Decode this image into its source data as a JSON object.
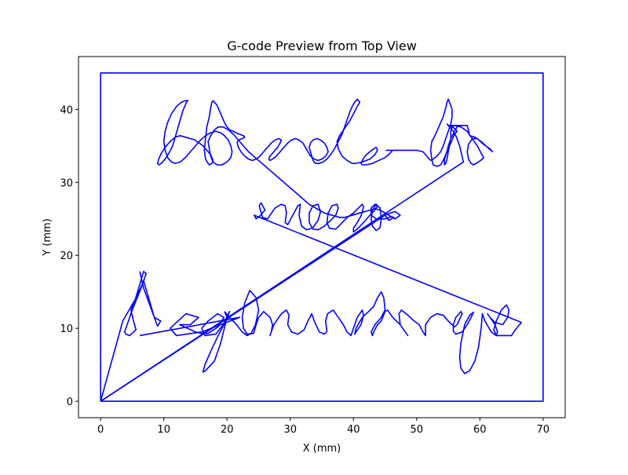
{
  "chart_data": {
    "type": "line",
    "title": "G-code Preview from Top View",
    "xlabel": "X (mm)",
    "ylabel": "Y (mm)",
    "xlim": [
      -3.5,
      73.5
    ],
    "ylim": [
      -2.25,
      47.25
    ],
    "xticks": [
      0,
      10,
      20,
      30,
      40,
      50,
      60,
      70
    ],
    "yticks": [
      0,
      10,
      20,
      30,
      40
    ],
    "grid": false,
    "line_color": "#0000ff",
    "series": [
      {
        "x": [
          0,
          0,
          70,
          70,
          0,
          0
        ],
        "y": [
          0,
          45,
          45,
          0,
          0,
          0
        ]
      },
      {
        "x": [
          0,
          3.5,
          5.5,
          6.8,
          7.2,
          6.4,
          5.0,
          4.2,
          3.8,
          4.0,
          4.6,
          5.6,
          5.2,
          4.8,
          5.8,
          6.8,
          8.5,
          9.5,
          9.0,
          6.8,
          6.2
        ],
        "y": [
          0,
          11,
          14,
          17.8,
          17.5,
          15.5,
          12.5,
          10.5,
          9.5,
          9.2,
          9.0,
          9.8,
          11,
          12.5,
          14.5,
          16.5,
          11.5,
          11.0,
          10.3,
          15.5,
          17.8
        ]
      },
      {
        "x": [
          6.2,
          22.0,
          19.0,
          16.0,
          12.0,
          11.0,
          13.5,
          15.5,
          14.2,
          12.5,
          15.0,
          16.0,
          17.0,
          18.6,
          19.5,
          18.5,
          17.0,
          16.0,
          16.5,
          18.2,
          19.4,
          20.4,
          19.8,
          18.6,
          17.5,
          16.5,
          16.2,
          16.6,
          18.0,
          19.0,
          20.0,
          19.6
        ],
        "y": [
          9.0,
          11.5,
          10.5,
          9.5,
          9.0,
          10.0,
          12.0,
          11.5,
          10.5,
          10.5,
          9.5,
          9.3,
          9.3,
          10.2,
          11.5,
          12.0,
          11.0,
          10.0,
          9.0,
          9.2,
          10.5,
          12.3,
          11.0,
          9.0,
          7.0,
          5.0,
          4.0,
          4.2,
          5.5,
          8.0,
          11.5,
          12.3
        ]
      },
      {
        "x": [
          19.6,
          20.4,
          21.5,
          22.4,
          23.2,
          23.8,
          24.5,
          25.0,
          24.6,
          23.6,
          22.8,
          22.4,
          22.6,
          23.2,
          24.2,
          24.6,
          25.0,
          25.8,
          26.8,
          27.2,
          27.0,
          26.8,
          27.4,
          28.6,
          29.4,
          29.8,
          29.6,
          30.2,
          31.2,
          32.2,
          32.8,
          33.4,
          33.8,
          34.6,
          35.4,
          35.8,
          35.6,
          35.9,
          36.8,
          37.6,
          38.4,
          39.0,
          39.6,
          40.0,
          40.6,
          41.4,
          41.6,
          41.2,
          40.4,
          40.2,
          40.4,
          41.4,
          42.4,
          43.2,
          43.8,
          44.4,
          44.8,
          45.0,
          44.4,
          43.4,
          42.8,
          43.0,
          43.2,
          43.8,
          44.4,
          45.0,
          45.4,
          46.2,
          47.4,
          48.2,
          48.6,
          48.2,
          47.4,
          47.2,
          47.6,
          48.6,
          49.6,
          50.4,
          51.0,
          51.4,
          51.4,
          51.4,
          52.2,
          53.2,
          54.2,
          55.0,
          55.6,
          56.0,
          56.4
        ],
        "y": [
          12.3,
          11.5,
          10.5,
          9.5,
          9.0,
          9.3,
          10.5,
          12.5,
          14.2,
          15.2,
          13.5,
          11.5,
          10.0,
          9.2,
          9.3,
          10.5,
          11.5,
          12.3,
          11.5,
          10.5,
          9.5,
          9.0,
          10.5,
          12.0,
          12.5,
          11.8,
          10.5,
          9.5,
          9.2,
          9.8,
          11.0,
          12.0,
          11.0,
          9.5,
          9.2,
          9.6,
          11.0,
          12.0,
          12.5,
          11.5,
          10.5,
          9.5,
          9.0,
          10.0,
          11.5,
          12.5,
          11.8,
          10.5,
          9.5,
          9.2,
          10.0,
          11.5,
          12.3,
          13.0,
          14.2,
          15.0,
          14.2,
          12.5,
          11.5,
          10.5,
          9.5,
          9.0,
          9.5,
          10.5,
          11.0,
          12.3,
          12.5,
          11.5,
          10.5,
          9.5,
          9.0,
          9.5,
          10.5,
          12.0,
          12.5,
          11.8,
          11.0,
          10.5,
          9.5,
          9.0,
          9.3,
          10.5,
          11.5,
          12.0,
          11.8,
          11.0,
          10.5,
          10.2,
          10.5
        ]
      },
      {
        "x": [
          56.4,
          57.2,
          57.0,
          56.2,
          55.8,
          55.8,
          56.2,
          57.2,
          58.0,
          58.6,
          59.0,
          58.4,
          57.6,
          57.0,
          56.8,
          57.0,
          57.6,
          58.4,
          59.2,
          59.8,
          60.2,
          60.4,
          60.8,
          61.8,
          62.6,
          62.8,
          62.4,
          61.6,
          61.2,
          61.6,
          62.4,
          63.6,
          64.4,
          64.6,
          64.2,
          63.4,
          62.6,
          62.2,
          62.6,
          63.0,
          64.0,
          65.0,
          65.6,
          66.6
        ],
        "y": [
          10.5,
          12.0,
          12.3,
          11.5,
          10.5,
          9.6,
          9.2,
          9.5,
          10.5,
          11.5,
          12.2,
          11.8,
          10.5,
          8.0,
          6.0,
          4.5,
          3.8,
          4.2,
          5.5,
          7.5,
          10.0,
          12.0,
          11.0,
          9.5,
          9.0,
          9.5,
          10.5,
          11.5,
          12.0,
          11.5,
          10.8,
          10.5,
          11.5,
          12.5,
          13.2,
          12.5,
          11.0,
          9.8,
          9.0,
          9.0,
          9.0,
          9.0,
          9.8,
          10.8
        ]
      },
      {
        "x": [
          66.6,
          24.3,
          24.6,
          25.2,
          26.0,
          25.4,
          25.1,
          25.6,
          26.4,
          27.6,
          28.6,
          29.2,
          29.4,
          29.2,
          29.6,
          30.4,
          31.2,
          31.6,
          31.4,
          31.8,
          32.6,
          33.6,
          34.4,
          34.8,
          34.4,
          33.6,
          33.0,
          33.0,
          33.6,
          34.4,
          35.4,
          36.4,
          37.2,
          37.6,
          37.4,
          36.6,
          36.0,
          35.8,
          36.2,
          37.2,
          38.0,
          39.0,
          40.0,
          40.8,
          41.4,
          41.6,
          41.2,
          40.4,
          40.0,
          40.0,
          40.6,
          41.6,
          42.6,
          43.4,
          43.8,
          43.6,
          43.0,
          42.8,
          43.0,
          43.6,
          44.2,
          44.4,
          44.2,
          43.4,
          42.8,
          42.8,
          43.6,
          45.0,
          46.0,
          46.4,
          45.6,
          45.0
        ],
        "y": [
          10.8,
          25.5,
          25.0,
          25.4,
          26.2,
          27.2,
          26.8,
          25.2,
          25.0,
          26.5,
          27.0,
          26.8,
          25.8,
          24.5,
          24.2,
          25.5,
          26.8,
          27.0,
          25.5,
          24.0,
          23.5,
          23.8,
          24.8,
          26.0,
          27.0,
          26.8,
          25.8,
          24.5,
          23.6,
          23.5,
          24.0,
          24.8,
          25.5,
          26.5,
          27.0,
          26.8,
          25.8,
          24.5,
          23.7,
          23.6,
          24.3,
          25.2,
          25.8,
          26.5,
          27.0,
          26.6,
          25.4,
          24.2,
          23.7,
          23.2,
          23.6,
          24.5,
          25.5,
          26.2,
          26.8,
          27.0,
          26.2,
          25.0,
          24.0,
          23.4,
          23.8,
          25.0,
          26.5,
          27.0,
          26.5,
          25.5,
          25.0,
          25.0,
          25.3,
          25.2,
          24.8,
          25.5
        ]
      },
      {
        "x": [
          45.0,
          0.0
        ],
        "y": [
          25.5,
          0.0
        ]
      },
      {
        "x": [
          0.0,
          57.4,
          56.8,
          56.2,
          55.8,
          55.4,
          55.0,
          54.8,
          55.0,
          55.6,
          56.0,
          56.2,
          56.4,
          56.0,
          55.6,
          55.2,
          55.0,
          54.8,
          54.6,
          54.4,
          54.4,
          54.8,
          55.0,
          55.4,
          55.4,
          55.6,
          56.0,
          57.0,
          58.0,
          58.8,
          59.6,
          60.2,
          60.6,
          60.4,
          59.8,
          59.0,
          58.6,
          58.2,
          58.0,
          58.2,
          58.8,
          59.6,
          60.6,
          61.6,
          62.0,
          61.2,
          60.2,
          59.2,
          58.4,
          58.0,
          57.0,
          56.4,
          56.0,
          55.8,
          55.6,
          55.4,
          55.2,
          55.0,
          55.0,
          55.6,
          56.2,
          56.6,
          56.4,
          56.0,
          55.4,
          55.0,
          54.6,
          54.2,
          53.8,
          53.2,
          52.6,
          52.4,
          52.2,
          52.4,
          53.0,
          53.6,
          54.2,
          54.6,
          54.8,
          55.0,
          55.2,
          55.6,
          55.6,
          55.4,
          55.0,
          54.6,
          54.2,
          53.8,
          53.2,
          52.6,
          52.2
        ],
        "y": [
          0.0,
          32.8,
          35.0,
          36.4,
          37.0,
          37.4,
          37.8,
          38.0,
          37.8,
          37.6,
          37.4,
          37.2,
          37.0,
          36.6,
          35.8,
          35.0,
          34.2,
          33.2,
          32.6,
          32.4,
          33.2,
          34.2,
          35.0,
          36.0,
          37.0,
          37.6,
          37.8,
          37.6,
          37.0,
          36.0,
          35.0,
          34.0,
          33.4,
          33.2,
          32.8,
          32.4,
          32.6,
          33.2,
          34.2,
          35.2,
          36.0,
          36.0,
          35.2,
          34.6,
          34.2,
          34.8,
          35.6,
          36.2,
          36.4,
          37.8,
          37.8,
          37.8,
          37.8,
          37.8,
          37.8,
          37.8,
          37.8,
          37.8,
          37.8,
          37.8,
          37.8,
          37.8,
          37.6,
          37.0,
          36.0,
          34.8,
          33.8,
          33.0,
          32.4,
          32.2,
          32.4,
          33.2,
          34.4,
          35.6,
          36.6,
          37.8,
          39.0,
          40.2,
          41.0,
          41.4,
          41.0,
          40.0,
          39.0,
          38.0,
          37.0,
          36.0,
          35.0,
          34.2,
          33.6,
          33.2,
          33.0
        ]
      },
      {
        "x": [
          52.2,
          51.6,
          51.0,
          50.0,
          49.0,
          48.0,
          47.0,
          46.2,
          45.6,
          45.2,
          45.2,
          45.6,
          46.0,
          46.2,
          45.8,
          45.0,
          44.0,
          43.0,
          42.0,
          41.4,
          41.2,
          41.4,
          41.8,
          42.6,
          43.2,
          43.6,
          43.8,
          43.4,
          42.6,
          41.4,
          40.4,
          39.8,
          39.0,
          38.2,
          37.6,
          37.4,
          37.8,
          38.6,
          39.4,
          40.0,
          40.6,
          41.0,
          40.6,
          40.2,
          39.8,
          39.4,
          39.0,
          38.6,
          38.2,
          37.6,
          37.0,
          36.4,
          35.8,
          35.2,
          34.6,
          34.0,
          33.6,
          33.4,
          33.2,
          33.0,
          33.2,
          33.6,
          34.2,
          34.8,
          35.4,
          35.8,
          36.0,
          35.6,
          35.0,
          34.4,
          33.8,
          33.2,
          32.8,
          32.4,
          32.0,
          31.4,
          30.8,
          30.2,
          29.6,
          29.0,
          28.4,
          27.8,
          27.2,
          26.8,
          26.6,
          26.8,
          27.4,
          28.0,
          28.4,
          28.6,
          28.2,
          27.6,
          27.0,
          26.4,
          25.8,
          25.2,
          24.6,
          24.0,
          23.4,
          22.8,
          22.2,
          21.8,
          21.6,
          21.8,
          22.4,
          22.8,
          22.6,
          22.0,
          21.4,
          21.0,
          20.4,
          20.0,
          19.6,
          19.2,
          18.8,
          18.4,
          18.0,
          17.8,
          17.6,
          17.4,
          17.2,
          16.8,
          16.6,
          16.4,
          16.6,
          17.0,
          17.2,
          17.6,
          17.8,
          17.6,
          17.4,
          17.0,
          16.6,
          16.2,
          15.6,
          15.2,
          15.0
        ],
        "y": [
          33.0,
          33.6,
          34.2,
          34.4,
          34.4,
          34.4,
          34.4,
          34.4,
          34.4,
          34.4,
          34.4,
          34.4,
          34.4,
          34.4,
          34.0,
          33.4,
          33.0,
          32.6,
          32.4,
          32.4,
          32.6,
          33.0,
          33.6,
          34.2,
          34.6,
          34.8,
          34.4,
          33.8,
          33.2,
          32.8,
          32.6,
          32.6,
          33.0,
          33.6,
          34.6,
          35.6,
          36.4,
          37.4,
          38.4,
          39.4,
          40.4,
          41.0,
          41.4,
          41.0,
          40.4,
          39.6,
          38.6,
          37.6,
          36.6,
          35.6,
          34.6,
          33.8,
          33.2,
          32.8,
          32.6,
          32.6,
          33.0,
          33.6,
          34.2,
          34.8,
          35.4,
          35.8,
          36.0,
          35.8,
          35.4,
          34.8,
          34.2,
          33.6,
          33.2,
          33.0,
          33.2,
          33.6,
          34.2,
          34.8,
          35.4,
          35.8,
          36.0,
          35.8,
          35.4,
          34.8,
          34.2,
          33.6,
          33.2,
          33.0,
          33.2,
          33.6,
          34.2,
          34.8,
          35.4,
          35.8,
          36.0,
          35.8,
          35.4,
          34.8,
          34.2,
          33.6,
          33.2,
          33.0,
          33.2,
          33.6,
          34.2,
          34.8,
          35.4,
          35.8,
          36.0,
          36.2,
          36.4,
          36.6,
          36.8,
          37.0,
          37.2,
          37.6,
          38.2,
          39.0,
          39.8,
          40.6,
          41.0,
          41.2,
          41.0,
          40.2,
          39.0,
          37.6,
          36.0,
          34.4,
          33.2,
          32.6,
          32.4,
          32.6,
          33.0,
          33.4,
          33.8,
          34.2,
          34.6,
          35.0,
          35.4,
          35.6,
          35.8
        ]
      },
      {
        "x": [
          15.0,
          13.4,
          12.6,
          11.8,
          11.0,
          10.2,
          9.6,
          9.2,
          9.0,
          9.2,
          9.6,
          10.2,
          10.8,
          11.4,
          11.8,
          12.2,
          12.6,
          13.0,
          13.4,
          13.6,
          13.8,
          13.4,
          12.8,
          12.0,
          11.2,
          10.6,
          10.2,
          10.0,
          10.2,
          10.6,
          11.2,
          11.8,
          12.6,
          13.4,
          14.2,
          15.0,
          15.8,
          16.6,
          17.4,
          18.2,
          19.0,
          19.6,
          20.2,
          20.6,
          20.8,
          20.6,
          20.0,
          19.2,
          18.4,
          17.8,
          17.4,
          17.2,
          17.0,
          17.4,
          18.0,
          18.6,
          19.4,
          20.2,
          21.0,
          21.8,
          22.6,
          23.4,
          24.2,
          25.0,
          25.8,
          26.6,
          27.4,
          28.2,
          29.0,
          29.8,
          30.6,
          31.4,
          32.2,
          33.0,
          33.8,
          34.6,
          35.4,
          36.2,
          37.0,
          37.8,
          38.6,
          39.4,
          40.2,
          41.0,
          41.8,
          42.6,
          43.4,
          44.2,
          45.0,
          45.8,
          46.6,
          47.4,
          46.6,
          45.8,
          45.0
        ],
        "y": [
          35.8,
          36.2,
          36.4,
          36.2,
          35.6,
          34.8,
          34.0,
          33.2,
          32.6,
          32.4,
          32.6,
          33.2,
          34.0,
          35.0,
          36.2,
          37.4,
          38.6,
          39.8,
          40.6,
          41.0,
          41.2,
          41.2,
          41.0,
          40.4,
          39.4,
          38.2,
          37.0,
          35.6,
          34.4,
          33.4,
          32.8,
          32.6,
          32.8,
          33.4,
          34.2,
          35.0,
          35.8,
          36.4,
          36.8,
          37.0,
          36.8,
          36.4,
          35.8,
          35.0,
          34.2,
          33.4,
          32.8,
          32.4,
          32.4,
          32.8,
          33.6,
          34.6,
          35.6,
          36.4,
          37.2,
          37.6,
          37.6,
          37.2,
          36.6,
          35.8,
          35.0,
          34.2,
          33.6,
          33.0,
          32.4,
          31.8,
          31.2,
          30.6,
          30.0,
          29.4,
          28.8,
          28.2,
          27.6,
          27.0,
          26.6,
          26.2,
          25.8,
          25.6,
          25.4,
          25.2,
          25.2,
          25.4,
          25.6,
          25.8,
          26.0,
          26.2,
          26.4,
          26.2,
          25.8,
          25.4,
          25.0,
          25.5,
          26.0,
          25.8,
          25.5
        ]
      }
    ]
  }
}
